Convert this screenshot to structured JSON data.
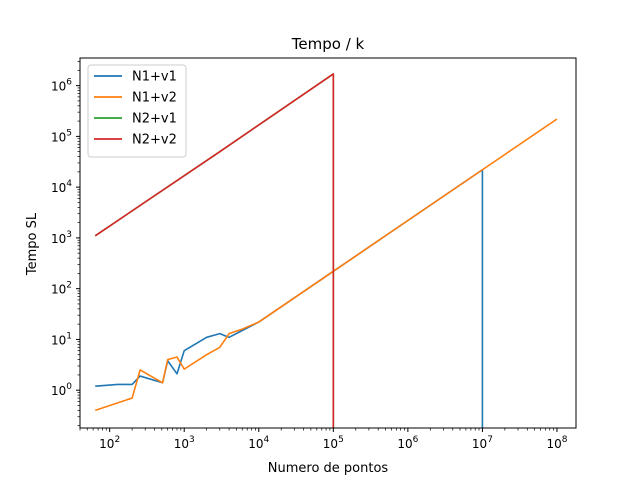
{
  "chart_data": {
    "type": "line",
    "title": "Tempo / k",
    "xlabel": "Numero de pontos",
    "ylabel": "Tempo SL",
    "xscale": "log",
    "yscale": "log",
    "xlim": [
      40,
      180000000
    ],
    "ylim": [
      0.18,
      3500000
    ],
    "x_ticks": [
      {
        "value": 100,
        "base": "10",
        "exp": "2"
      },
      {
        "value": 1000,
        "base": "10",
        "exp": "3"
      },
      {
        "value": 10000,
        "base": "10",
        "exp": "4"
      },
      {
        "value": 100000,
        "base": "10",
        "exp": "5"
      },
      {
        "value": 1000000,
        "base": "10",
        "exp": "6"
      },
      {
        "value": 10000000,
        "base": "10",
        "exp": "7"
      },
      {
        "value": 100000000,
        "base": "10",
        "exp": "8"
      }
    ],
    "y_ticks": [
      {
        "value": 1,
        "base": "10",
        "exp": "0"
      },
      {
        "value": 10,
        "base": "10",
        "exp": "1"
      },
      {
        "value": 100,
        "base": "10",
        "exp": "2"
      },
      {
        "value": 1000,
        "base": "10",
        "exp": "3"
      },
      {
        "value": 10000,
        "base": "10",
        "exp": "4"
      },
      {
        "value": 100000,
        "base": "10",
        "exp": "5"
      },
      {
        "value": 1000000,
        "base": "10",
        "exp": "6"
      }
    ],
    "grid": false,
    "legend_position": "upper-left",
    "series": [
      {
        "name": "N1+v1",
        "color": "#1f77b4",
        "x": [
          64,
          128,
          200,
          256,
          512,
          600,
          800,
          1000,
          2000,
          3000,
          4000,
          6000,
          10000,
          100000,
          1000000,
          10000000,
          10000000
        ],
        "y": [
          1.2,
          1.3,
          1.3,
          1.9,
          1.4,
          3.8,
          2.1,
          6,
          11,
          13,
          11,
          15,
          22,
          220,
          2200,
          22000,
          0.18
        ]
      },
      {
        "name": "N1+v2",
        "color": "#ff7f0e",
        "x": [
          64,
          200,
          256,
          512,
          600,
          800,
          1000,
          2000,
          3000,
          4000,
          6000,
          10000,
          100000,
          1000000,
          10000000,
          100000000
        ],
        "y": [
          0.4,
          0.7,
          2.5,
          1.4,
          4,
          4.5,
          2.6,
          5,
          7,
          13,
          16,
          22,
          220,
          2200,
          22000,
          220000
        ]
      },
      {
        "name": "N2+v1",
        "color": "#2ca02c",
        "x": [
          64,
          3000,
          100000,
          100000
        ],
        "y": [
          1100,
          50000,
          1700000,
          0.18
        ]
      },
      {
        "name": "N2+v2",
        "color": "#d62728",
        "x": [
          64,
          3000,
          100000,
          100000
        ],
        "y": [
          1100,
          50000,
          1700000,
          0.18
        ]
      }
    ]
  }
}
